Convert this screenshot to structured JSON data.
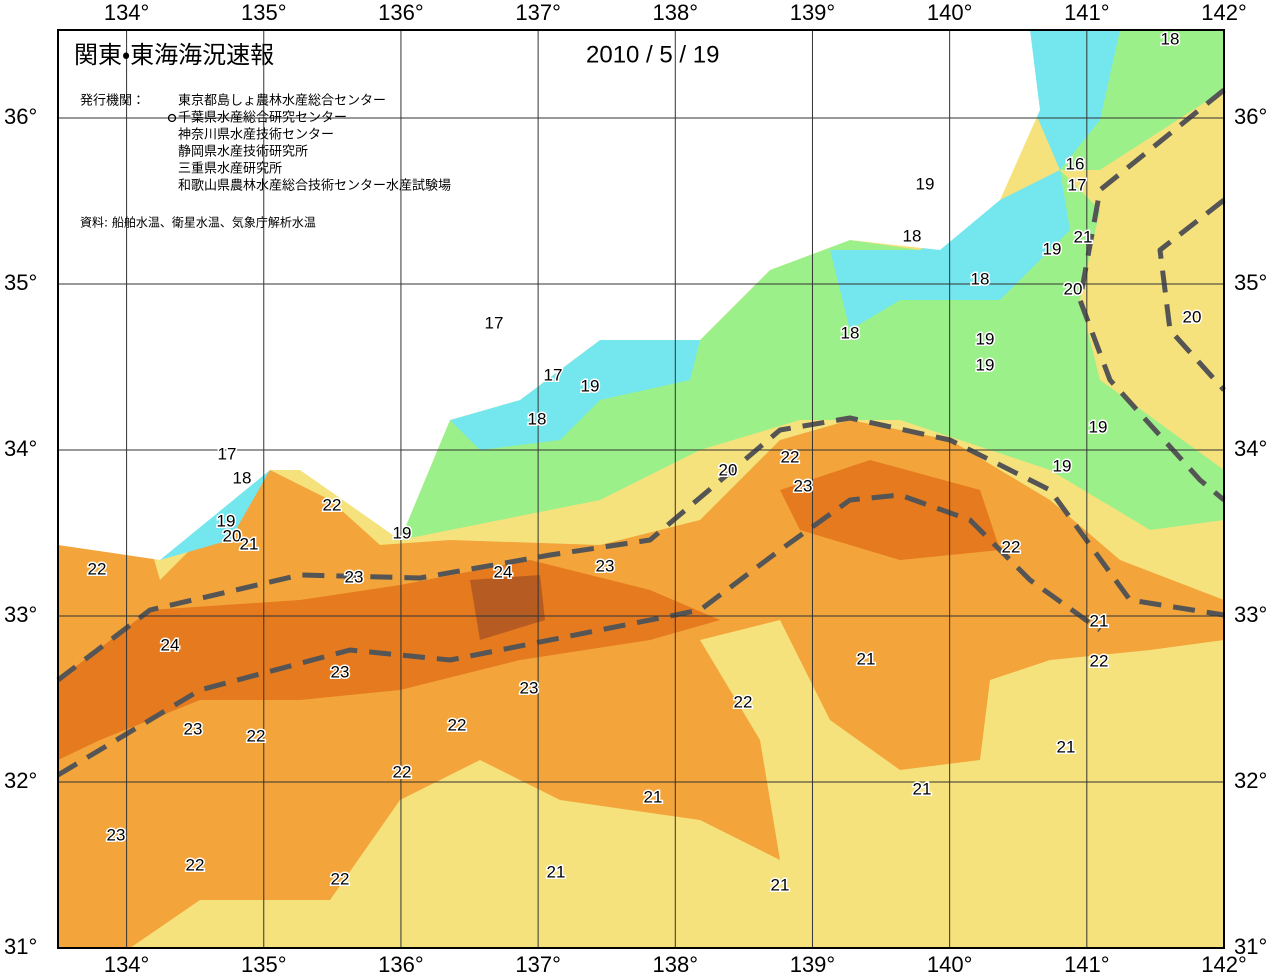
{
  "header": {
    "title": "関東・東海海況速報",
    "date": "2010 / 5 / 19",
    "publisher_label": "発行機関：",
    "publishers": [
      "東京都島しょ農林水産総合センター",
      "千葉県水産総合研究センター",
      "神奈川県水産技術センター",
      "静岡県水産技術研究所",
      "三重県水産研究所",
      "和歌山県農林水産総合技術センター水産試験場"
    ],
    "sources": "資料: 船舶水温、衛星水温、気象庁解析水温"
  },
  "map": {
    "lon_range": [
      133.5,
      142
    ],
    "lat_range": [
      31,
      36.53
    ],
    "lon_ticks": [
      {
        "value": 134,
        "label": "134°"
      },
      {
        "value": 135,
        "label": "135°"
      },
      {
        "value": 136,
        "label": "136°"
      },
      {
        "value": 137,
        "label": "137°"
      },
      {
        "value": 138,
        "label": "138°"
      },
      {
        "value": 139,
        "label": "139°"
      },
      {
        "value": 140,
        "label": "140°"
      },
      {
        "value": 141,
        "label": "141°"
      },
      {
        "value": 142,
        "label": "142°"
      }
    ],
    "lat_ticks": [
      {
        "value": 31,
        "label": "31°"
      },
      {
        "value": 32,
        "label": "32°"
      },
      {
        "value": 33,
        "label": "33°"
      },
      {
        "value": 34,
        "label": "34°"
      },
      {
        "value": 35,
        "label": "35°"
      },
      {
        "value": 36,
        "label": "36°"
      }
    ],
    "contour_labels": [
      18,
      16,
      17,
      19,
      18,
      21,
      19,
      18,
      20,
      20,
      17,
      18,
      19,
      19,
      17,
      19,
      18,
      19,
      17,
      22,
      19,
      18,
      20,
      23,
      22,
      19,
      19,
      20,
      21,
      22,
      22,
      24,
      23,
      23,
      21,
      24,
      21,
      22,
      23,
      23,
      22,
      23,
      22,
      22,
      21,
      22,
      21,
      21,
      23,
      22,
      21,
      22,
      21
    ]
  }
}
